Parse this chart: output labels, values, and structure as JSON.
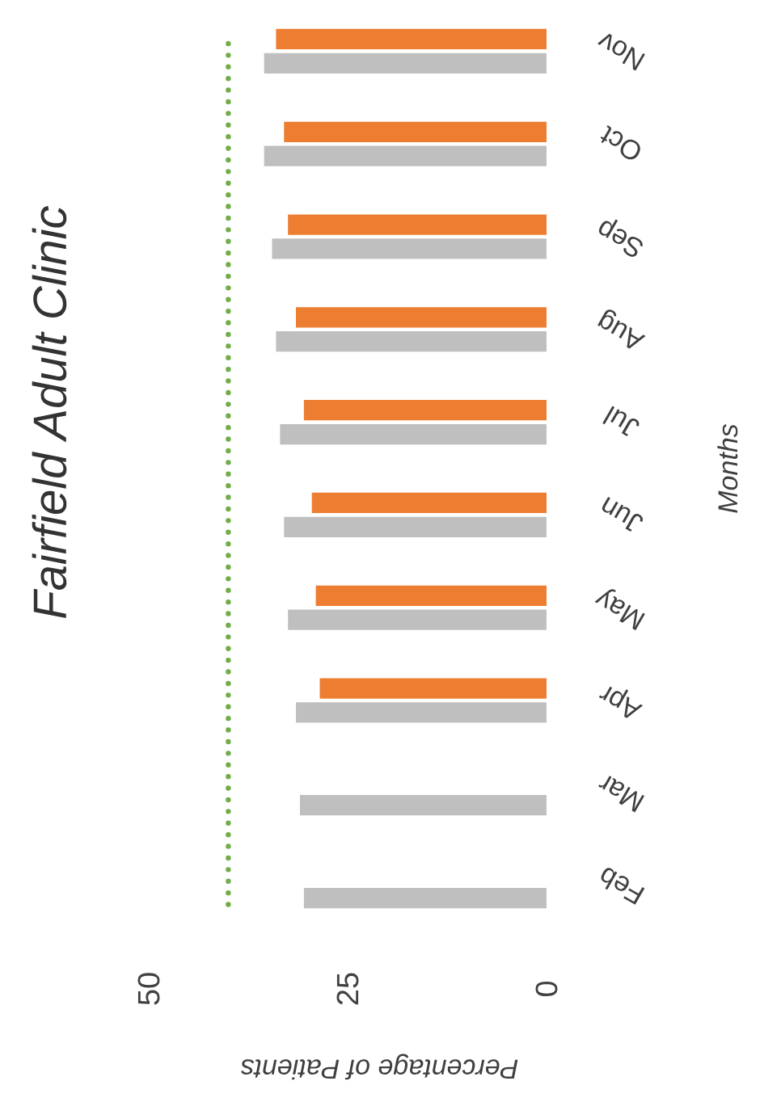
{
  "chart_data": {
    "type": "bar",
    "orientation": "horizontal",
    "title": "Fairfield Adult Clinic",
    "xlabel": "Percentage of Patients",
    "ylabel": "Months",
    "categories": [
      "Nov",
      "Oct",
      "Sep",
      "Aug",
      "Jul",
      "Jun",
      "May",
      "Apr",
      "Mar",
      "Feb"
    ],
    "series": [
      {
        "color": "#bfbfbf",
        "values": [
          35.5,
          35.5,
          34.5,
          34,
          33.5,
          33,
          32.5,
          31.5,
          31,
          30.5
        ]
      },
      {
        "color": "#ed7d31",
        "values": [
          34,
          33,
          32.5,
          31.5,
          30.5,
          29.5,
          29,
          28.5,
          null,
          null
        ]
      }
    ],
    "xlim": [
      50,
      0
    ],
    "xticks": [
      50,
      25,
      0
    ],
    "ref_lines": [
      {
        "axis": "x",
        "value": 40,
        "color": "#70ad47",
        "line_style": "dotted"
      }
    ],
    "grid": false
  }
}
